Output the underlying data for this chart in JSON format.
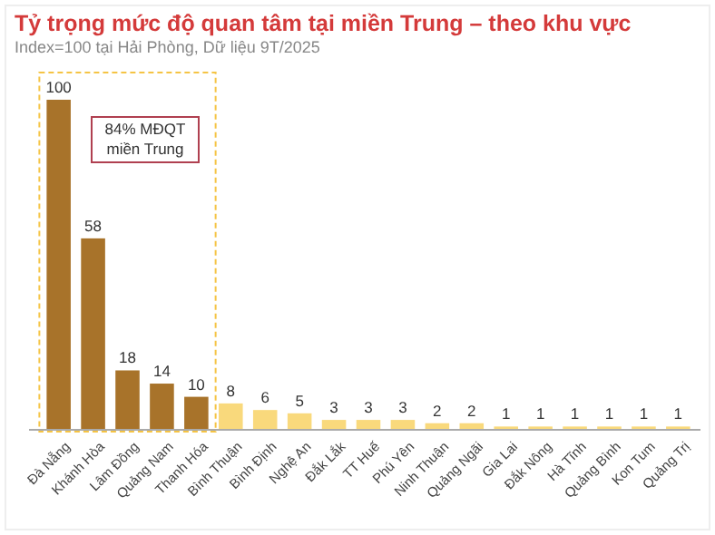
{
  "chart_data": {
    "type": "bar",
    "title": "Tỷ trọng mức độ quan tâm tại miền Trung – theo khu vực",
    "subtitle": "Index=100 tại Hải Phòng, Dữ liệu 9T/2025",
    "categories": [
      "Đà Nẵng",
      "Khánh Hòa",
      "Lâm Đồng",
      "Quảng Nam",
      "Thanh Hóa",
      "Bình Thuận",
      "Bình Định",
      "Nghệ An",
      "Đắk Lắk",
      "TT Huế",
      "Phú Yên",
      "Ninh Thuận",
      "Quảng Ngãi",
      "Gia Lai",
      "Đắk Nông",
      "Hà Tĩnh",
      "Quảng Bình",
      "Kon Tum",
      "Quảng Trị"
    ],
    "values": [
      100,
      58,
      18,
      14,
      10,
      8,
      6,
      5,
      3,
      3,
      3,
      2,
      2,
      1,
      1,
      1,
      1,
      1,
      1
    ],
    "colors": [
      "#a8732a",
      "#a8732a",
      "#a8732a",
      "#a8732a",
      "#a8732a",
      "#f9d97c",
      "#f9d97c",
      "#f9d97c",
      "#f9d97c",
      "#f9d97c",
      "#f9d97c",
      "#f9d97c",
      "#f9d97c",
      "#f9d97c",
      "#f9d97c",
      "#f9d97c",
      "#f9d97c",
      "#f9d97c",
      "#f9d97c"
    ],
    "ylim": [
      0,
      100
    ],
    "tick_labels": "x",
    "data_labels": true,
    "grid": false,
    "annotations": [
      "84% MĐQT miền Trung"
    ]
  }
}
